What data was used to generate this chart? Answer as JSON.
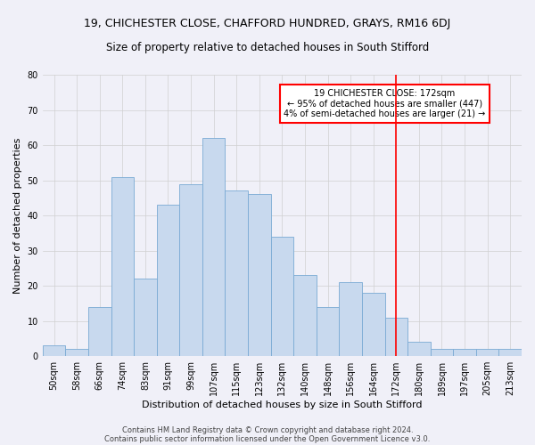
{
  "title1": "19, CHICHESTER CLOSE, CHAFFORD HUNDRED, GRAYS, RM16 6DJ",
  "title2": "Size of property relative to detached houses in South Stifford",
  "xlabel": "Distribution of detached houses by size in South Stifford",
  "ylabel": "Number of detached properties",
  "categories": [
    "50sqm",
    "58sqm",
    "66sqm",
    "74sqm",
    "83sqm",
    "91sqm",
    "99sqm",
    "107sqm",
    "115sqm",
    "123sqm",
    "132sqm",
    "140sqm",
    "148sqm",
    "156sqm",
    "164sqm",
    "172sqm",
    "180sqm",
    "189sqm",
    "197sqm",
    "205sqm",
    "213sqm"
  ],
  "values": [
    3,
    2,
    14,
    51,
    22,
    43,
    49,
    62,
    47,
    46,
    34,
    23,
    14,
    21,
    18,
    11,
    4,
    2,
    2,
    2,
    2
  ],
  "bar_color": "#c8d9ee",
  "bar_edge_color": "#7aaad4",
  "grid_color": "#d0d0d0",
  "vline_x": 15,
  "vline_color": "red",
  "annotation_text": "19 CHICHESTER CLOSE: 172sqm\n← 95% of detached houses are smaller (447)\n4% of semi-detached houses are larger (21) →",
  "annotation_box_color": "white",
  "annotation_edge_color": "red",
  "footer1": "Contains HM Land Registry data © Crown copyright and database right 2024.",
  "footer2": "Contains public sector information licensed under the Open Government Licence v3.0.",
  "ylim": [
    0,
    80
  ],
  "yticks": [
    0,
    10,
    20,
    30,
    40,
    50,
    60,
    70,
    80
  ],
  "bg_color": "#f0f0f8",
  "title1_fontsize": 9,
  "title2_fontsize": 8.5,
  "tick_fontsize": 7,
  "label_fontsize": 8,
  "annotation_fontsize": 7,
  "footer_fontsize": 6
}
